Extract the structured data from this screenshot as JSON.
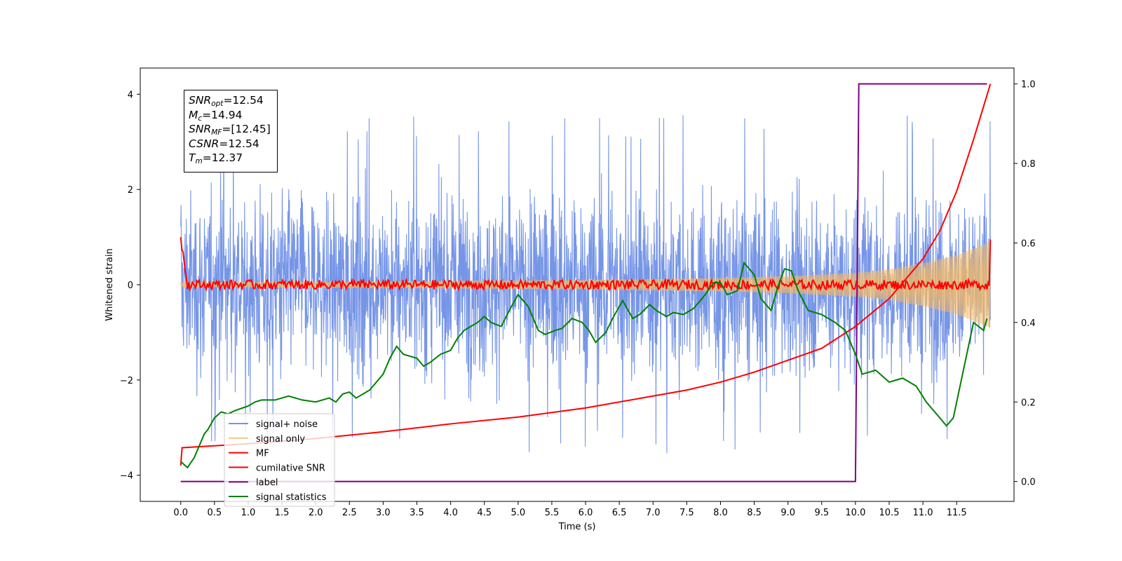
{
  "chart_data": {
    "type": "line",
    "xlabel": "Time (s)",
    "ylabel": "Whitened strain",
    "xlim": [
      -0.6,
      12.35
    ],
    "ylim": [
      -4.55,
      4.55
    ],
    "ylim_right": [
      -0.05,
      1.04
    ],
    "x_ticks": [
      "0.0",
      "0.5",
      "1.0",
      "1.5",
      "2.0",
      "2.5",
      "3.0",
      "3.5",
      "4.0",
      "4.5",
      "5.0",
      "5.5",
      "6.0",
      "6.5",
      "7.0",
      "7.5",
      "8.0",
      "8.5",
      "9.0",
      "9.5",
      "10.0",
      "10.5",
      "11.0",
      "11.5"
    ],
    "y_ticks_left": [
      "4",
      "2",
      "0",
      "−2",
      "−4"
    ],
    "y_ticks_right": [
      "1.0",
      "0.8",
      "0.6",
      "0.4",
      "0.2",
      "0.0"
    ],
    "legend_position": "lower-left",
    "annotation": {
      "snr_opt": "=12.54",
      "mc": "=14.94",
      "snr_mf": "=[12.45]",
      "csnr": "=12.54",
      "tm": "=12.37"
    },
    "series": [
      {
        "name": "signal+ noise",
        "axis": "left",
        "color": "#6f8fe6",
        "style": "noise-band",
        "t_start": 0.0,
        "t_end": 12.0,
        "typical_amplitude": 2.0,
        "max_value": 4.1,
        "min_value": -4.1
      },
      {
        "name": "signal only",
        "axis": "left",
        "color": "#f5b961",
        "style": "chirp-envelope",
        "t_start": 0.0,
        "t_end": 12.0,
        "envelope": [
          [
            0.0,
            0.05
          ],
          [
            2.0,
            0.06
          ],
          [
            4.0,
            0.08
          ],
          [
            6.0,
            0.1
          ],
          [
            8.0,
            0.14
          ],
          [
            9.0,
            0.18
          ],
          [
            10.0,
            0.25
          ],
          [
            10.5,
            0.32
          ],
          [
            11.0,
            0.45
          ],
          [
            11.5,
            0.62
          ],
          [
            12.0,
            0.9
          ]
        ]
      },
      {
        "name": "MF",
        "axis": "left",
        "color": "#ff0000",
        "style": "jitter",
        "t_start": 0.0,
        "t_end": 12.0,
        "start_value": 1.0,
        "jitter_amplitude": 0.1,
        "end_value": 0.95
      },
      {
        "name": "cumilative SNR",
        "axis": "right",
        "color": "#ff0000",
        "points": [
          [
            0.0,
            0.04
          ],
          [
            0.02,
            0.085
          ],
          [
            1.0,
            0.095
          ],
          [
            2.0,
            0.108
          ],
          [
            3.0,
            0.125
          ],
          [
            4.0,
            0.145
          ],
          [
            5.0,
            0.162
          ],
          [
            6.0,
            0.185
          ],
          [
            7.0,
            0.215
          ],
          [
            7.5,
            0.23
          ],
          [
            8.0,
            0.25
          ],
          [
            8.5,
            0.275
          ],
          [
            9.0,
            0.305
          ],
          [
            9.5,
            0.335
          ],
          [
            10.0,
            0.39
          ],
          [
            10.5,
            0.46
          ],
          [
            11.0,
            0.56
          ],
          [
            11.25,
            0.63
          ],
          [
            11.5,
            0.73
          ],
          [
            11.75,
            0.86
          ],
          [
            12.0,
            1.0
          ]
        ]
      },
      {
        "name": "label",
        "axis": "right",
        "color": "#800080",
        "points": [
          [
            0.0,
            0.0
          ],
          [
            10.0,
            0.0
          ],
          [
            10.05,
            1.0
          ],
          [
            11.95,
            1.0
          ]
        ]
      },
      {
        "name": "signal statistics",
        "axis": "right",
        "color": "#008000",
        "points": [
          [
            0.0,
            0.05
          ],
          [
            0.1,
            0.035
          ],
          [
            0.2,
            0.06
          ],
          [
            0.35,
            0.12
          ],
          [
            0.4,
            0.13
          ],
          [
            0.5,
            0.16
          ],
          [
            0.6,
            0.175
          ],
          [
            0.7,
            0.17
          ],
          [
            0.8,
            0.178
          ],
          [
            1.0,
            0.19
          ],
          [
            1.1,
            0.2
          ],
          [
            1.2,
            0.205
          ],
          [
            1.4,
            0.205
          ],
          [
            1.5,
            0.21
          ],
          [
            1.6,
            0.215
          ],
          [
            1.8,
            0.205
          ],
          [
            2.0,
            0.2
          ],
          [
            2.2,
            0.21
          ],
          [
            2.3,
            0.2
          ],
          [
            2.4,
            0.22
          ],
          [
            2.5,
            0.225
          ],
          [
            2.6,
            0.21
          ],
          [
            2.8,
            0.23
          ],
          [
            3.0,
            0.27
          ],
          [
            3.1,
            0.31
          ],
          [
            3.2,
            0.34
          ],
          [
            3.3,
            0.32
          ],
          [
            3.5,
            0.31
          ],
          [
            3.6,
            0.29
          ],
          [
            3.7,
            0.3
          ],
          [
            3.85,
            0.32
          ],
          [
            4.0,
            0.33
          ],
          [
            4.1,
            0.36
          ],
          [
            4.2,
            0.38
          ],
          [
            4.4,
            0.4
          ],
          [
            4.5,
            0.415
          ],
          [
            4.6,
            0.4
          ],
          [
            4.75,
            0.39
          ],
          [
            4.9,
            0.44
          ],
          [
            5.0,
            0.47
          ],
          [
            5.15,
            0.44
          ],
          [
            5.3,
            0.38
          ],
          [
            5.4,
            0.37
          ],
          [
            5.55,
            0.38
          ],
          [
            5.65,
            0.385
          ],
          [
            5.8,
            0.41
          ],
          [
            5.95,
            0.4
          ],
          [
            6.05,
            0.38
          ],
          [
            6.15,
            0.35
          ],
          [
            6.3,
            0.375
          ],
          [
            6.4,
            0.41
          ],
          [
            6.55,
            0.455
          ],
          [
            6.7,
            0.41
          ],
          [
            6.8,
            0.42
          ],
          [
            6.95,
            0.445
          ],
          [
            7.05,
            0.43
          ],
          [
            7.2,
            0.415
          ],
          [
            7.3,
            0.425
          ],
          [
            7.45,
            0.42
          ],
          [
            7.6,
            0.435
          ],
          [
            7.75,
            0.465
          ],
          [
            7.9,
            0.5
          ],
          [
            8.0,
            0.5
          ],
          [
            8.1,
            0.47
          ],
          [
            8.25,
            0.48
          ],
          [
            8.35,
            0.55
          ],
          [
            8.5,
            0.52
          ],
          [
            8.6,
            0.46
          ],
          [
            8.75,
            0.43
          ],
          [
            8.85,
            0.49
          ],
          [
            8.95,
            0.535
          ],
          [
            9.05,
            0.53
          ],
          [
            9.15,
            0.48
          ],
          [
            9.3,
            0.43
          ],
          [
            9.5,
            0.42
          ],
          [
            9.7,
            0.4
          ],
          [
            9.85,
            0.38
          ],
          [
            10.0,
            0.32
          ],
          [
            10.1,
            0.27
          ],
          [
            10.3,
            0.28
          ],
          [
            10.5,
            0.25
          ],
          [
            10.7,
            0.26
          ],
          [
            10.9,
            0.24
          ],
          [
            11.05,
            0.2
          ],
          [
            11.2,
            0.17
          ],
          [
            11.35,
            0.14
          ],
          [
            11.45,
            0.16
          ],
          [
            11.6,
            0.28
          ],
          [
            11.75,
            0.4
          ],
          [
            11.9,
            0.38
          ],
          [
            11.95,
            0.41
          ]
        ]
      }
    ]
  }
}
